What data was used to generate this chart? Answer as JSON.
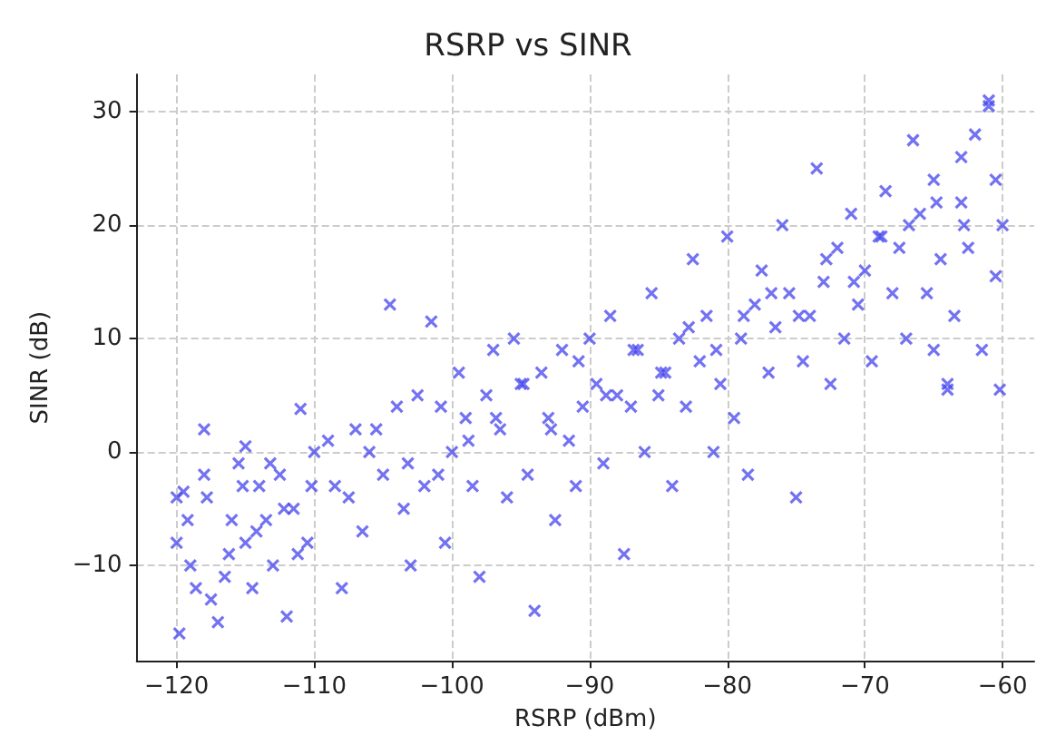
{
  "chart_data": {
    "type": "scatter",
    "title": "RSRP vs SINR",
    "xlabel": "RSRP (dBm)",
    "ylabel": "SINR (dB)",
    "xlim": [
      -122.9,
      -57.7
    ],
    "ylim": [
      -18.4,
      33.3
    ],
    "xticks": [
      -120,
      -110,
      -100,
      -90,
      -80,
      -70,
      -60
    ],
    "yticks": [
      -10,
      0,
      10,
      20,
      30
    ],
    "grid": true,
    "marker": "cross",
    "series": [
      {
        "color": "#4444ee",
        "x": [
          -120,
          -120,
          -119.5,
          -119.8,
          -119,
          -118,
          -118,
          -117.5,
          -117,
          -116.5,
          -116,
          -115.5,
          -115,
          -115,
          -114.5,
          -114,
          -113.5,
          -113,
          -112.5,
          -112,
          -111.5,
          -111,
          -110.5,
          -110,
          -119.2,
          -118.6,
          -117.8,
          -116.2,
          -115.2,
          -114.2,
          -113.2,
          -112.2,
          -111.2,
          -110.2,
          -109,
          -108,
          -107.5,
          -107,
          -106.5,
          -106,
          -105,
          -104.5,
          -104,
          -103.5,
          -103,
          -102.5,
          -102,
          -101.5,
          -101,
          -100.5,
          -100,
          -99.5,
          -99,
          -98.5,
          -98,
          -97.5,
          -97,
          -96.5,
          -96,
          -95.5,
          -95,
          -94.5,
          -94,
          -93.5,
          -93,
          -92.5,
          -92,
          -91.5,
          -91,
          -90.5,
          -90,
          -89.5,
          -89,
          -88.5,
          -88,
          -87.5,
          -87,
          -86.5,
          -86,
          -85.5,
          -85,
          -84.5,
          -84,
          -83.5,
          -83,
          -82.5,
          -82,
          -81.5,
          -81,
          -80.5,
          -80,
          -79.5,
          -79,
          -78.5,
          -78,
          -77.5,
          -77,
          -76.5,
          -76,
          -75.5,
          -75,
          -74.5,
          -74,
          -73.5,
          -73,
          -72.5,
          -72,
          -71.5,
          -71,
          -70.5,
          -70,
          -69.5,
          -69,
          -68.5,
          -68,
          -67.5,
          -67,
          -66.5,
          -66,
          -65.5,
          -65,
          -64.5,
          -64,
          -63.5,
          -63,
          -62.5,
          -62,
          -61.5,
          -61,
          -60.5,
          -60,
          -60.2,
          -60.5,
          -63,
          -65,
          -64,
          -61,
          -108.5,
          -105.5,
          -103.2,
          -100.8,
          -98.8,
          -96.8,
          -94.8,
          -92.8,
          -90.8,
          -88.8,
          -86.8,
          -84.8,
          -82.8,
          -80.8,
          -78.8,
          -76.8,
          -74.8,
          -72.8,
          -70.8,
          -68.8,
          -66.8,
          -64.8,
          -62.8
        ],
        "values": [
          -4,
          -8,
          -3.5,
          -16,
          -10,
          2,
          -2,
          -13,
          -15,
          -11,
          -6,
          -1,
          0.5,
          -8,
          -12,
          -3,
          -6,
          -10,
          -2,
          -14.5,
          -5,
          3.8,
          -8,
          0,
          -6,
          -12,
          -4,
          -9,
          -3,
          -7,
          -1,
          -5,
          -9,
          -3,
          1,
          -12,
          -4,
          2,
          -7,
          0,
          -2,
          13,
          4,
          -5,
          -10,
          5,
          -3,
          11.5,
          -2,
          -8,
          0,
          7,
          3,
          -3,
          -11,
          5,
          9,
          2,
          -4,
          10,
          6,
          -2,
          -14,
          7,
          3,
          -6,
          9,
          1,
          -3,
          4,
          10,
          6,
          -1,
          12,
          5,
          -9,
          4,
          9,
          0,
          14,
          5,
          7,
          -3,
          10,
          4,
          17,
          8,
          12,
          0,
          6,
          19,
          3,
          10,
          -2,
          13,
          16,
          7,
          11,
          20,
          14,
          -4,
          8,
          12,
          25,
          15,
          6,
          18,
          10,
          21,
          13,
          16,
          8,
          19,
          23,
          14,
          18,
          10,
          27.5,
          21,
          14,
          24,
          17,
          6,
          12,
          22,
          18,
          28,
          9,
          31,
          24,
          20,
          5.5,
          15.5,
          26,
          9,
          5.5,
          30.5,
          -3,
          2,
          -1,
          4,
          1,
          3,
          6,
          2,
          8,
          5,
          9,
          7,
          11,
          9,
          12,
          14,
          12,
          17,
          15,
          19,
          20,
          22,
          20
        ]
      }
    ]
  }
}
